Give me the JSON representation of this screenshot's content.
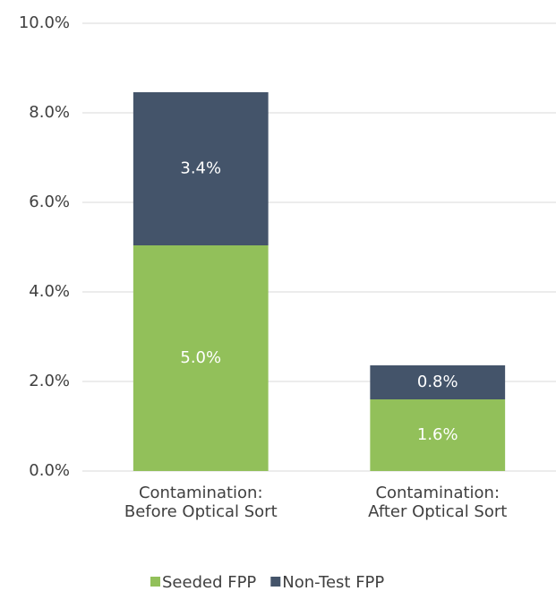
{
  "chart_data": {
    "type": "stacked_bar",
    "categories": [
      "Contamination:\nBefore Optical Sort",
      "Contamination:\nAfter Optical Sort"
    ],
    "series": [
      {
        "name": "Seeded FPP",
        "color": "#92c05a",
        "values": [
          5.04,
          1.6
        ],
        "value_labels": [
          "5.0%",
          "1.6%"
        ]
      },
      {
        "name": "Non-Test FPP",
        "color": "#44546a",
        "values": [
          3.42,
          0.76
        ],
        "value_labels": [
          "3.4%",
          "0.8%"
        ]
      }
    ],
    "ylim": [
      0,
      10
    ],
    "yticks": [
      {
        "value": 0,
        "label": "0.0%"
      },
      {
        "value": 2,
        "label": "2.0%"
      },
      {
        "value": 4,
        "label": "4.0%"
      },
      {
        "value": 6,
        "label": "6.0%"
      },
      {
        "value": 8,
        "label": "8.0%"
      },
      {
        "value": 10,
        "label": "10.0%"
      }
    ],
    "grid": true,
    "legend": "bottom"
  }
}
